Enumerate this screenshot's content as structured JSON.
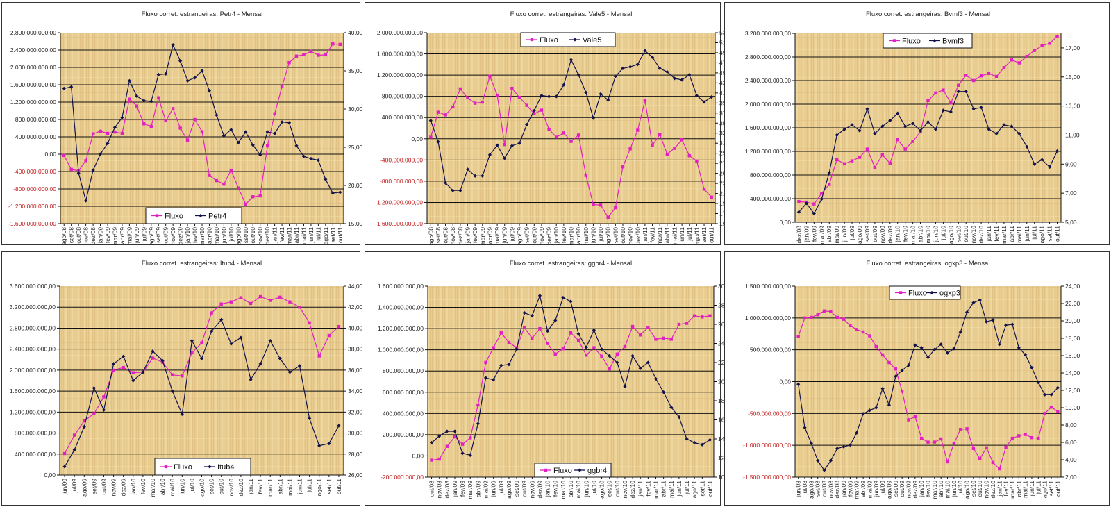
{
  "colors": {
    "fluxo": "#e020c0",
    "price": "#12124a",
    "negative_label": "#c01818",
    "plot_bg": "#e8cc8e"
  },
  "chart_data": [
    {
      "type": "line",
      "title": "Fluxo corret. estrangeiras: Petr4 - Mensal",
      "legend": {
        "fluxo": "Fluxo",
        "price": "Petr4",
        "placement": "bottom-center"
      },
      "categories": [
        "ago/08",
        "set/08",
        "out/08",
        "nov/08",
        "dez/08",
        "jan/09",
        "fev/09",
        "mar/09",
        "abr/09",
        "mai/09",
        "jun/09",
        "jul/09",
        "ago/09",
        "set/09",
        "out/09",
        "nov/09",
        "dez/09",
        "jan/10",
        "fev/10",
        "mar/10",
        "abr/10",
        "mai/10",
        "jun/10",
        "jul/10",
        "ago/10",
        "set/10",
        "out/10",
        "nov/10",
        "dez/10",
        "jan/11",
        "fev/11",
        "mar/11",
        "abr/11",
        "mai/11",
        "jun/11",
        "jul/11",
        "ago/11",
        "set/11",
        "out/11"
      ],
      "fluxo_millions": [
        -30,
        -350,
        -380,
        -150,
        470,
        530,
        480,
        510,
        480,
        1270,
        1110,
        700,
        640,
        1300,
        770,
        1050,
        600,
        320,
        800,
        520,
        -490,
        -610,
        -690,
        -370,
        -780,
        -1150,
        -980,
        -960,
        190,
        930,
        1560,
        2110,
        2260,
        2290,
        2370,
        2280,
        2290,
        2540,
        2530
      ],
      "price": [
        32.7,
        32.9,
        21.6,
        18.0,
        22.0,
        24.1,
        25.5,
        27.6,
        28.9,
        33.7,
        31.7,
        31.1,
        31.0,
        34.5,
        34.6,
        38.4,
        36.3,
        33.7,
        34.1,
        35.0,
        32.4,
        29.2,
        26.5,
        27.3,
        25.6,
        27.0,
        25.3,
        24.0,
        27.0,
        26.8,
        28.3,
        28.2,
        25.2,
        23.8,
        23.5,
        23.3,
        20.8,
        19.0,
        19.1
      ],
      "left_axis": {
        "min": -1600,
        "max": 2800,
        "step": 400,
        "labels": [
          "-1.600.000.000,00",
          "-1.200.000.000,00",
          "-800.000.000,00",
          "-400.000.000,00",
          "0,00",
          "400.000.000,00",
          "800.000.000,00",
          "1.200.000.000,00",
          "1.600.000.000,00",
          "2.000.000.000,00",
          "2.400.000.000,00",
          "2.800.000.000,00"
        ]
      },
      "right_axis": {
        "min": 15,
        "max": 40,
        "step": 5,
        "labels": [
          "15,00",
          "20,00",
          "25,00",
          "30,00",
          "35,00",
          "40,00"
        ]
      }
    },
    {
      "type": "line",
      "title": "Fluxo corret. estrangeiras: Vale5 - Mensal",
      "legend": {
        "fluxo": "Fluxo",
        "price": "Vale5",
        "placement": "top-center"
      },
      "categories": [
        "ago/08",
        "set/08",
        "out/08",
        "nov/08",
        "dez/08",
        "jan/09",
        "fev/09",
        "mar/09",
        "abr/09",
        "mai/09",
        "jun/09",
        "jul/09",
        "ago/09",
        "set/09",
        "out/09",
        "nov/09",
        "dez/09",
        "jan/10",
        "fev/10",
        "mar/10",
        "abr/10",
        "mai/10",
        "jun/10",
        "jul/10",
        "ago/10",
        "set/10",
        "out/10",
        "nov/10",
        "dez/10",
        "jan/11",
        "fev/11",
        "mar/11",
        "abr/11",
        "mai/11",
        "jun/11",
        "jul/11",
        "ago/11",
        "set/11",
        "out/11"
      ],
      "fluxo_millions": [
        30,
        500,
        450,
        600,
        940,
        770,
        670,
        690,
        1180,
        820,
        -110,
        950,
        780,
        630,
        470,
        540,
        180,
        30,
        110,
        -50,
        70,
        -690,
        -1240,
        -1250,
        -1480,
        -1300,
        -530,
        -190,
        160,
        720,
        -120,
        80,
        -290,
        -180,
        -20,
        -320,
        -420,
        -950,
        -1100
      ],
      "price": [
        35.5,
        31.3,
        23.1,
        21.6,
        21.6,
        25.8,
        24.5,
        24.5,
        28.7,
        30.6,
        28.0,
        30.5,
        31.0,
        34.7,
        37.5,
        40.5,
        40.3,
        40.3,
        42.6,
        47.6,
        44.6,
        41.1,
        36.0,
        40.8,
        39.6,
        44.3,
        45.9,
        46.2,
        46.7,
        49.4,
        48.1,
        45.9,
        45.2,
        43.9,
        43.6,
        44.6,
        40.5,
        39.2,
        40.2
      ],
      "left_axis": {
        "min": -1600,
        "max": 2000,
        "step": 400,
        "labels": [
          "-1.600.000.000,00",
          "-1.200.000.000,00",
          "-800.000.000,00",
          "-400.000.000,00",
          "0,00",
          "400.000.000,00",
          "800.000.000,00",
          "1.200.000.000,00",
          "1.600.000.000,00",
          "2.000.000.000,00"
        ]
      },
      "right_axis": {
        "min": 15,
        "max": 53,
        "step": 2,
        "labels": [
          "15,00",
          "17,00",
          "19,00",
          "21,00",
          "23,00",
          "25,00",
          "27,00",
          "29,00",
          "31,00",
          "33,00",
          "35,00",
          "37,00",
          "39,00",
          "41,00",
          "43,00",
          "45,00",
          "47,00",
          "49,00",
          "51,00",
          "53,00"
        ]
      }
    },
    {
      "type": "line",
      "title": "Fluxo corret. estrangeiras: Bvmf3 - Mensal",
      "legend": {
        "fluxo": "Fluxo",
        "price": "Bvmf3",
        "placement": "top-center"
      },
      "categories": [
        "dez/08",
        "jan/09",
        "fev/09",
        "mar/09",
        "abr/09",
        "mai/09",
        "jun/09",
        "jul/09",
        "ago/09",
        "set/09",
        "out/09",
        "nov/09",
        "dez/09",
        "jan/10",
        "fev/10",
        "mar/10",
        "abr/10",
        "mai/10",
        "jun/10",
        "jul/10",
        "ago/10",
        "set/10",
        "out/10",
        "nov/10",
        "dez/10",
        "jan/11",
        "fev/11",
        "mar/11",
        "abr/11",
        "mai/11",
        "jun/11",
        "jul/11",
        "ago/11",
        "set/11",
        "out/11"
      ],
      "fluxo_millions": [
        350,
        340,
        310,
        490,
        640,
        1060,
        990,
        1040,
        1100,
        1240,
        930,
        1140,
        1000,
        1400,
        1240,
        1370,
        1530,
        2060,
        2190,
        2240,
        2020,
        2320,
        2490,
        2400,
        2480,
        2520,
        2470,
        2620,
        2750,
        2700,
        2810,
        2910,
        2990,
        3030,
        3150
      ],
      "price": [
        5.7,
        6.3,
        5.6,
        6.6,
        8.4,
        11.0,
        11.4,
        11.7,
        11.3,
        12.8,
        11.1,
        11.6,
        12.0,
        12.5,
        11.6,
        11.8,
        11.3,
        11.9,
        11.4,
        12.7,
        12.6,
        14.0,
        14.0,
        12.8,
        12.9,
        11.4,
        11.1,
        11.7,
        11.6,
        11.1,
        10.2,
        9.0,
        9.3,
        8.8,
        9.9
      ],
      "left_axis": {
        "min": 0,
        "max": 3200,
        "step": 400,
        "labels": [
          "0,00",
          "400.000.000,00",
          "800.000.000,00",
          "1.200.000.000,00",
          "1.600.000.000,00",
          "2.000.000.000,00",
          "2.400.000.000,00",
          "2.800.000.000,00",
          "3.200.000.000,00"
        ]
      },
      "right_axis": {
        "min": 5,
        "max": 18,
        "step": 2,
        "labels": [
          "5,00",
          "7,00",
          "9,00",
          "11,00",
          "13,00",
          "15,00",
          "17,00"
        ]
      }
    },
    {
      "type": "line",
      "title": "Fluxo corret. estrangeiras: Itub4 - Mensal",
      "legend": {
        "fluxo": "Fluxo",
        "price": "Itub4",
        "placement": "bottom-center"
      },
      "categories": [
        "jun/09",
        "jul/09",
        "ago/09",
        "set/09",
        "out/09",
        "nov/09",
        "dez/09",
        "jan/10",
        "fev/10",
        "mar/10",
        "abr/10",
        "mai/10",
        "jun/10",
        "jul/10",
        "ago/10",
        "set/10",
        "out/10",
        "nov/10",
        "dez/10",
        "jan/11",
        "fev/11",
        "mar/11",
        "abr/11",
        "mai/11",
        "jun/11",
        "jul/11",
        "ago/11",
        "set/11",
        "out/11"
      ],
      "fluxo_millions": [
        410,
        760,
        1030,
        1170,
        1490,
        2000,
        2050,
        1950,
        1960,
        2230,
        2150,
        1910,
        1890,
        2330,
        2520,
        3090,
        3260,
        3300,
        3380,
        3270,
        3400,
        3330,
        3390,
        3300,
        3200,
        2900,
        2270,
        2660,
        2830
      ],
      "price": [
        26.8,
        28.4,
        30.6,
        34.3,
        32.2,
        36.6,
        37.3,
        35.0,
        35.8,
        37.8,
        36.9,
        34.0,
        31.8,
        38.8,
        37.1,
        39.7,
        40.8,
        38.5,
        39.1,
        35.1,
        36.6,
        38.8,
        37.1,
        35.8,
        36.4,
        31.4,
        28.8,
        29.0,
        30.7
      ],
      "left_axis": {
        "min": 0,
        "max": 3600,
        "step": 400,
        "labels": [
          "0,00",
          "400.000.000,00",
          "800.000.000,00",
          "1.200.000.000,00",
          "1.600.000.000,00",
          "2.000.000.000,00",
          "2.400.000.000,00",
          "2.800.000.000,00",
          "3.200.000.000,00",
          "3.600.000.000,00"
        ]
      },
      "right_axis": {
        "min": 26,
        "max": 44,
        "step": 2,
        "labels": [
          "26,00",
          "28,00",
          "30,00",
          "32,00",
          "34,00",
          "36,00",
          "38,00",
          "40,00",
          "42,00",
          "44,00"
        ]
      }
    },
    {
      "type": "line",
      "title": "Fluxo corret. estrangeiras: ggbr4 - Mensal",
      "legend": {
        "fluxo": "Fluxo",
        "price": "ggbr4",
        "placement": "bottom-center"
      },
      "categories": [
        "out/08",
        "nov/08",
        "dez/08",
        "jan/09",
        "fev/09",
        "mar/09",
        "abr/09",
        "mai/09",
        "jun/09",
        "jul/09",
        "ago/09",
        "set/09",
        "out/09",
        "nov/09",
        "dez/09",
        "jan/10",
        "fev/10",
        "mar/10",
        "abr/10",
        "mai/10",
        "jun/10",
        "jul/10",
        "ago/10",
        "set/10",
        "out/10",
        "nov/10",
        "dez/10",
        "jan/11",
        "fev/11",
        "mar/11",
        "abr/11",
        "mai/11",
        "jun/11",
        "jul/11",
        "ago/11",
        "set/11",
        "out/11"
      ],
      "fluxo_millions": [
        -40,
        -30,
        90,
        180,
        110,
        170,
        480,
        880,
        1020,
        1160,
        1070,
        1020,
        1210,
        1110,
        1200,
        1060,
        960,
        1010,
        1160,
        1090,
        950,
        1020,
        940,
        820,
        960,
        1030,
        1220,
        1140,
        1210,
        1100,
        1110,
        1100,
        1240,
        1250,
        1320,
        1310,
        1320
      ],
      "price": [
        13.6,
        14.3,
        14.8,
        14.8,
        12.5,
        12.3,
        15.6,
        20.4,
        20.2,
        21.7,
        21.8,
        23.4,
        27.2,
        26.9,
        29.0,
        25.3,
        26.4,
        28.8,
        28.4,
        25.0,
        23.6,
        25.4,
        23.4,
        22.7,
        22.0,
        19.5,
        22.7,
        21.4,
        22.0,
        20.3,
        18.9,
        17.3,
        16.3,
        14.0,
        13.6,
        13.4,
        13.9
      ],
      "left_axis": {
        "min": -200,
        "max": 1600,
        "step": 200,
        "labels": [
          "-200.000.000,00",
          "0,00",
          "200.000.000,00",
          "400.000.000,00",
          "600.000.000,00",
          "800.000.000,00",
          "1.000.000.000,00",
          "1.200.000.000,00",
          "1.400.000.000,00",
          "1.600.000.000,00"
        ]
      },
      "right_axis": {
        "min": 10,
        "max": 30,
        "step": 2,
        "labels": [
          "10,00",
          "12,00",
          "14,00",
          "16,00",
          "18,00",
          "20,00",
          "22,00",
          "24,00",
          "26,00",
          "28,00",
          "30,00"
        ]
      }
    },
    {
      "type": "line",
      "title": "Fluxo corret. estrangeiras: ogxp3 - Mensal",
      "legend": {
        "fluxo": "Fluxo",
        "price": "ogxp3",
        "placement": "top-center"
      },
      "categories": [
        "jun/08",
        "jul/08",
        "ago/08",
        "set/08",
        "out/08",
        "nov/08",
        "dez/08",
        "jan/09",
        "fev/09",
        "mar/09",
        "abr/09",
        "mai/09",
        "jun/09",
        "jul/09",
        "ago/09",
        "set/09",
        "out/09",
        "nov/09",
        "dez/09",
        "jan/10",
        "fev/10",
        "mar/10",
        "abr/10",
        "mai/10",
        "jun/10",
        "jul/10",
        "ago/10",
        "set/10",
        "out/10",
        "nov/10",
        "dez/10",
        "jan/11",
        "fev/11",
        "mar/11",
        "abr/11",
        "mai/11",
        "jun/11",
        "jul/11",
        "ago/11",
        "set/11",
        "out/11"
      ],
      "fluxo_millions": [
        710,
        1000,
        1010,
        1050,
        1110,
        1100,
        1010,
        980,
        880,
        820,
        780,
        720,
        550,
        420,
        300,
        200,
        -150,
        -600,
        -550,
        -890,
        -950,
        -950,
        -900,
        -1260,
        -970,
        -750,
        -740,
        -1050,
        -1210,
        -1040,
        -1270,
        -1370,
        -1030,
        -890,
        -850,
        -830,
        -880,
        -890,
        -500,
        -400,
        -470
      ],
      "price": [
        12.7,
        7.7,
        5.9,
        3.9,
        2.8,
        3.9,
        5.3,
        5.5,
        5.7,
        7.1,
        9.3,
        9.7,
        10.0,
        12.2,
        10.3,
        13.6,
        14.3,
        14.9,
        17.2,
        16.9,
        15.8,
        16.7,
        17.3,
        16.3,
        16.8,
        18.7,
        21.0,
        22.1,
        22.4,
        19.9,
        20.1,
        17.3,
        19.5,
        19.6,
        16.9,
        16.1,
        14.6,
        12.9,
        11.5,
        11.5,
        12.3
      ],
      "left_axis": {
        "min": -1500,
        "max": 1500,
        "step": 500,
        "labels": [
          "-1.500.000.000,00",
          "-1.000.000.000,00",
          "-500.000.000,00",
          "0,00",
          "500.000.000,00",
          "1.000.000.000,00",
          "1.500.000.000,00"
        ]
      },
      "right_axis": {
        "min": 2,
        "max": 24,
        "step": 2,
        "labels": [
          "2,00",
          "4,00",
          "6,00",
          "8,00",
          "10,00",
          "12,00",
          "14,00",
          "16,00",
          "18,00",
          "20,00",
          "22,00",
          "24,00"
        ]
      }
    }
  ]
}
